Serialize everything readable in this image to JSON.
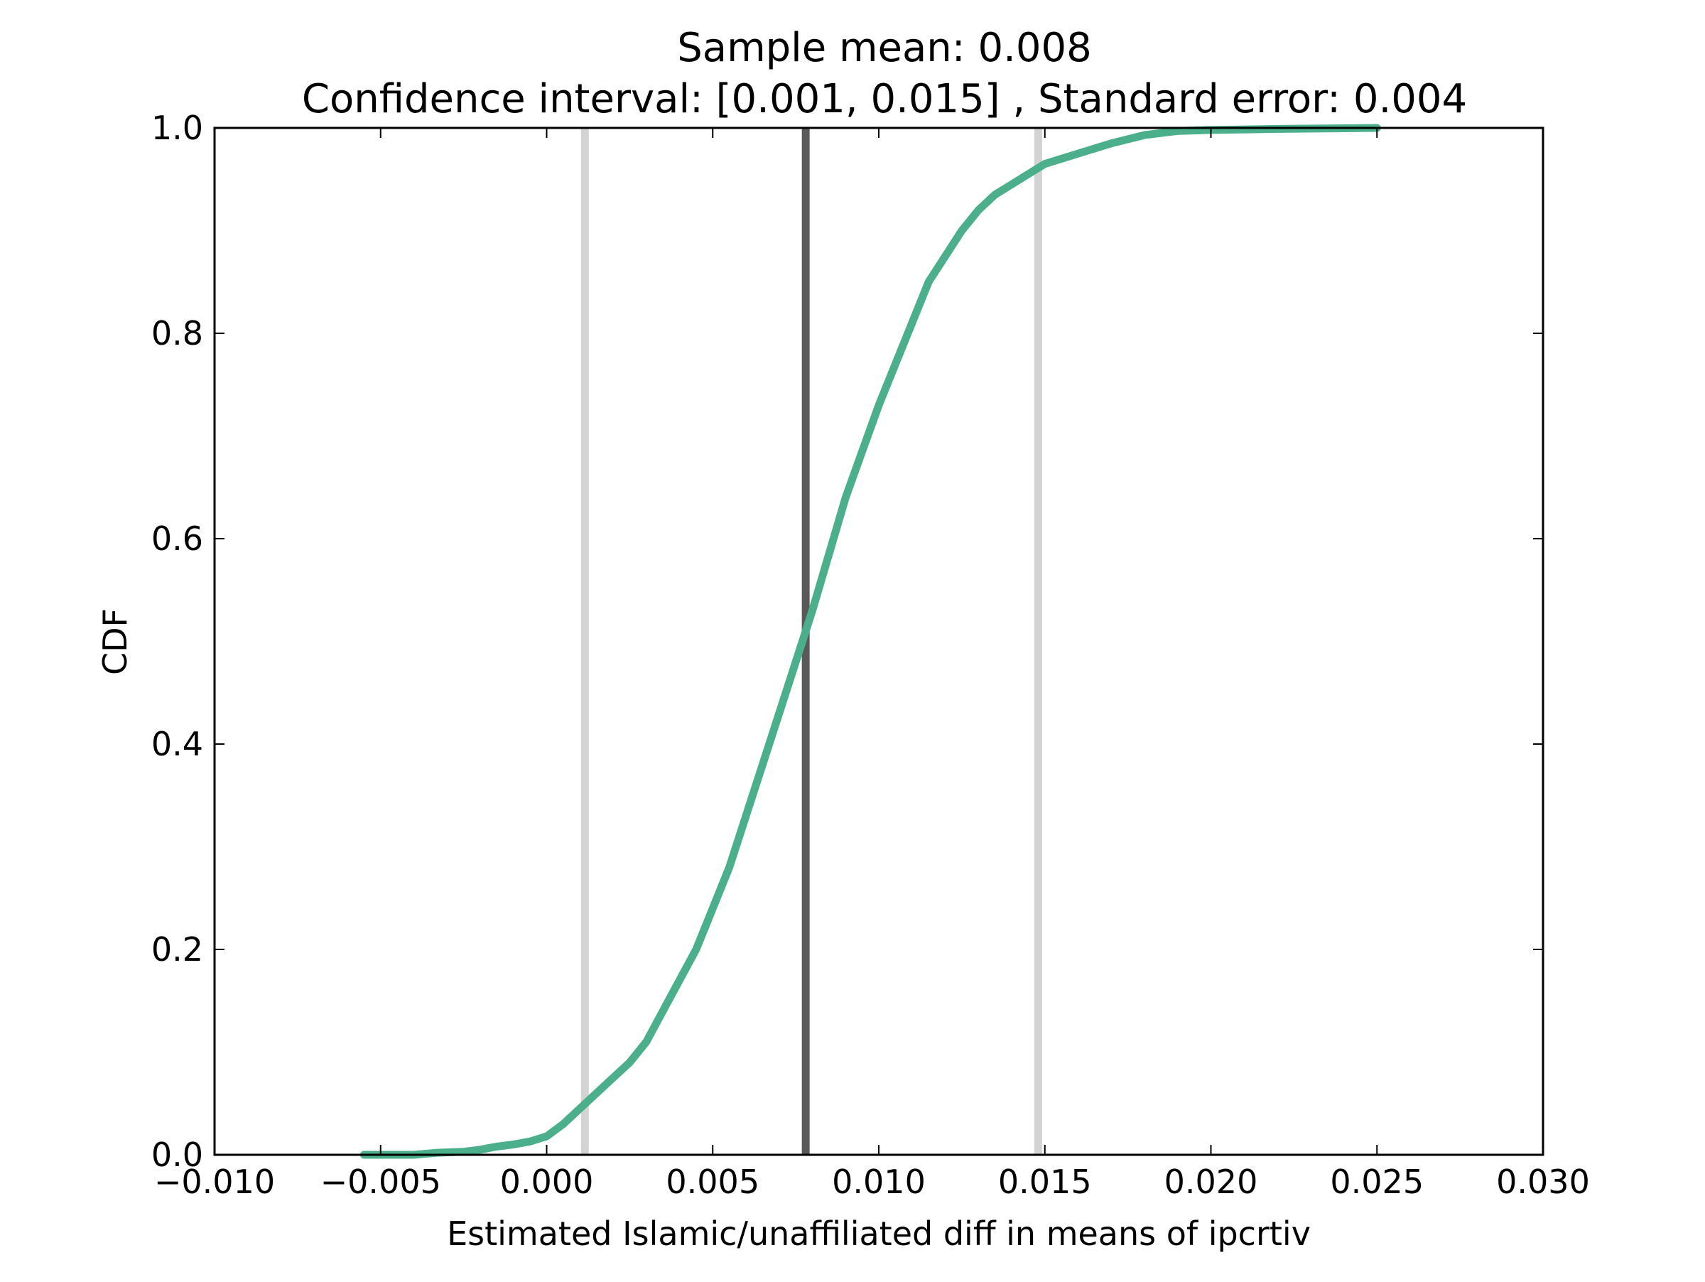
{
  "chart_data": {
    "type": "line",
    "title_line1": "Sample mean: 0.008",
    "title_line2": "Confidence interval: [0.001, 0.015] , Standard error: 0.004",
    "xlabel": "Estimated Islamic/unaffiliated diff in means of ipcrtiv",
    "ylabel": "CDF",
    "xlim": [
      -0.01,
      0.03
    ],
    "ylim": [
      0.0,
      1.0
    ],
    "x_ticks": [
      -0.01,
      -0.005,
      0.0,
      0.005,
      0.01,
      0.015,
      0.02,
      0.025,
      0.03
    ],
    "x_tick_labels": [
      "−0.010",
      "−0.005",
      "0.000",
      "0.005",
      "0.010",
      "0.015",
      "0.020",
      "0.025",
      "0.030"
    ],
    "y_ticks": [
      0.0,
      0.2,
      0.4,
      0.6,
      0.8,
      1.0
    ],
    "y_tick_labels": [
      "0.0",
      "0.2",
      "0.4",
      "0.6",
      "0.8",
      "1.0"
    ],
    "grid": false,
    "vertical_lines": [
      {
        "name": "ci-lower-line",
        "x": 0.00115,
        "color": "#d3d3d3"
      },
      {
        "name": "sample-mean-line",
        "x": 0.0078,
        "color": "#595959"
      },
      {
        "name": "ci-upper-line",
        "x": 0.0148,
        "color": "#d3d3d3"
      }
    ],
    "series": [
      {
        "name": "CDF",
        "color": "#4caf8c",
        "x": [
          -0.0055,
          -0.004,
          -0.0033,
          -0.0025,
          -0.002,
          -0.0015,
          -0.001,
          -0.0005,
          0.0,
          0.0005,
          0.001,
          0.0015,
          0.002,
          0.0025,
          0.003,
          0.0035,
          0.004,
          0.0045,
          0.005,
          0.0055,
          0.006,
          0.0065,
          0.007,
          0.0075,
          0.008,
          0.0085,
          0.009,
          0.0095,
          0.01,
          0.0105,
          0.011,
          0.0115,
          0.012,
          0.0125,
          0.013,
          0.0135,
          0.014,
          0.0145,
          0.015,
          0.016,
          0.017,
          0.018,
          0.019,
          0.02,
          0.022,
          0.025
        ],
        "y": [
          0.0,
          0.0,
          0.002,
          0.003,
          0.005,
          0.008,
          0.01,
          0.013,
          0.018,
          0.03,
          0.045,
          0.06,
          0.075,
          0.09,
          0.11,
          0.14,
          0.17,
          0.2,
          0.24,
          0.28,
          0.33,
          0.38,
          0.43,
          0.48,
          0.53,
          0.585,
          0.64,
          0.685,
          0.73,
          0.77,
          0.81,
          0.85,
          0.875,
          0.9,
          0.92,
          0.935,
          0.945,
          0.955,
          0.965,
          0.975,
          0.985,
          0.993,
          0.997,
          0.998,
          0.999,
          1.0
        ]
      }
    ]
  }
}
